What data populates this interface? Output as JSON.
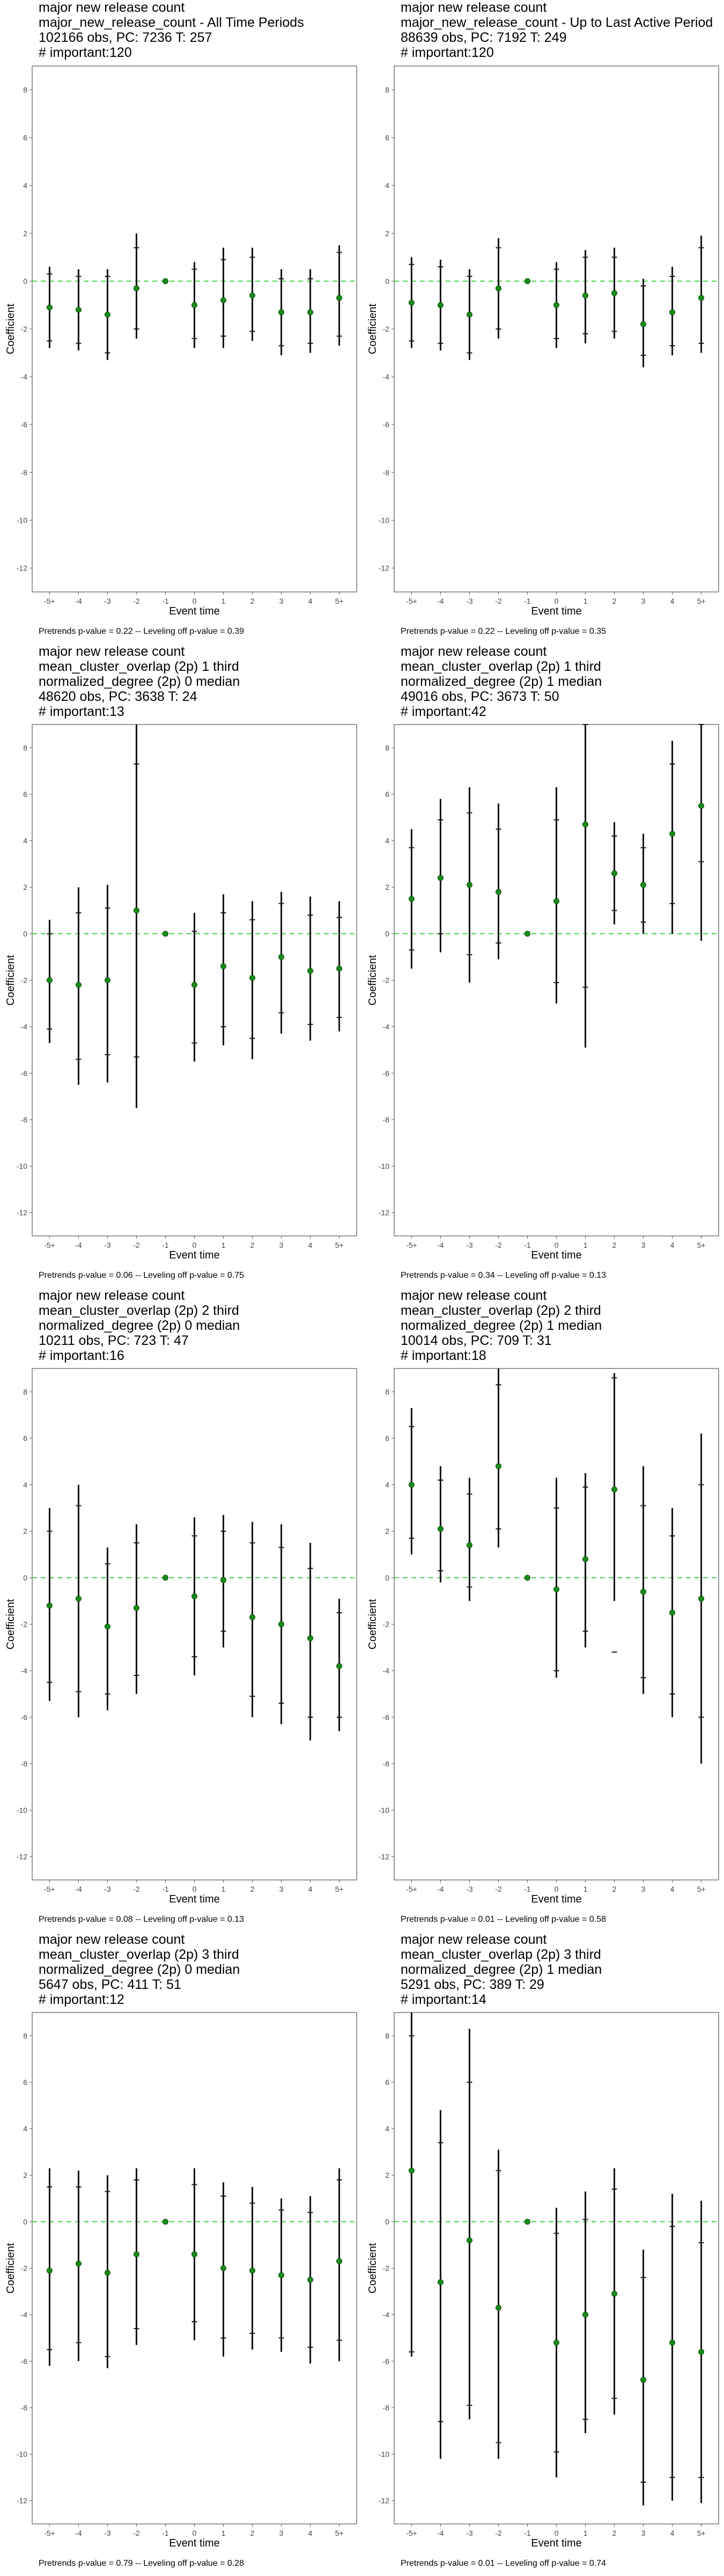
{
  "chart_data": [
    {
      "type": "scatter",
      "title_lines": [
        "major new release count",
        "major_new_release_count - All Time Periods",
        "102166 obs, PC: 7236 T: 257",
        "# important:120"
      ],
      "xlabel": "Event time",
      "ylabel": "Coefficient",
      "categories": [
        "-5+",
        "-4",
        "-3",
        "-2",
        "-1",
        "0",
        "1",
        "2",
        "3",
        "4",
        "5+"
      ],
      "ylim": [
        -13,
        9
      ],
      "yticks": [
        -12,
        -10,
        -8,
        -6,
        -4,
        -2,
        0,
        2,
        4,
        6,
        8
      ],
      "values": [
        -1.1,
        -1.2,
        -1.4,
        -0.3,
        0.0,
        -1.0,
        -0.8,
        -0.6,
        -1.3,
        -1.3,
        -0.7
      ],
      "ci95": [
        [
          -2.8,
          0.6
        ],
        [
          -2.9,
          0.5
        ],
        [
          -3.3,
          0.5
        ],
        [
          -2.4,
          2.0
        ],
        [
          0,
          0
        ],
        [
          -2.8,
          0.8
        ],
        [
          -2.8,
          1.4
        ],
        [
          -2.5,
          1.4
        ],
        [
          -3.1,
          0.5
        ],
        [
          -3.0,
          0.5
        ],
        [
          -2.7,
          1.5
        ]
      ],
      "ci90": [
        [
          -2.5,
          0.3
        ],
        [
          -2.6,
          0.2
        ],
        [
          -3.0,
          0.2
        ],
        [
          -2.0,
          1.4
        ],
        [
          0,
          0
        ],
        [
          -2.4,
          0.5
        ],
        [
          -2.3,
          0.9
        ],
        [
          -2.1,
          1.0
        ],
        [
          -2.7,
          0.1
        ],
        [
          -2.6,
          0.1
        ],
        [
          -2.3,
          1.2
        ]
      ],
      "footnote": "Pretrends p-value = 0.22 -- Leveling off p-value = 0.39"
    },
    {
      "type": "scatter",
      "title_lines": [
        "major new release count",
        "major_new_release_count - Up to Last Active Period",
        "88639 obs, PC: 7192 T: 249",
        "# important:120"
      ],
      "xlabel": "Event time",
      "ylabel": "Coefficient",
      "categories": [
        "-5+",
        "-4",
        "-3",
        "-2",
        "-1",
        "0",
        "1",
        "2",
        "3",
        "4",
        "5+"
      ],
      "ylim": [
        -13,
        9
      ],
      "yticks": [
        -12,
        -10,
        -8,
        -6,
        -4,
        -2,
        0,
        2,
        4,
        6,
        8
      ],
      "values": [
        -0.9,
        -1.0,
        -1.4,
        -0.3,
        0.0,
        -1.0,
        -0.6,
        -0.5,
        -1.8,
        -1.3,
        -0.7
      ],
      "ci95": [
        [
          -2.8,
          1.0
        ],
        [
          -2.9,
          0.9
        ],
        [
          -3.3,
          0.5
        ],
        [
          -2.4,
          1.8
        ],
        [
          0,
          0
        ],
        [
          -2.8,
          0.8
        ],
        [
          -2.6,
          1.3
        ],
        [
          -2.4,
          1.4
        ],
        [
          -3.6,
          0.1
        ],
        [
          -3.1,
          0.6
        ],
        [
          -3.0,
          1.9
        ]
      ],
      "ci90": [
        [
          -2.5,
          0.7
        ],
        [
          -2.6,
          0.6
        ],
        [
          -3.0,
          0.2
        ],
        [
          -2.0,
          1.4
        ],
        [
          0,
          0
        ],
        [
          -2.4,
          0.5
        ],
        [
          -2.2,
          1.0
        ],
        [
          -2.1,
          1.0
        ],
        [
          -3.1,
          -0.2
        ],
        [
          -2.7,
          0.2
        ],
        [
          -2.6,
          1.4
        ]
      ],
      "footnote": "Pretrends p-value = 0.22 -- Leveling off p-value = 0.35"
    },
    {
      "type": "scatter",
      "title_lines": [
        "major new release count",
        "mean_cluster_overlap (2p) 1 third",
        "normalized_degree (2p) 0 median",
        "48620 obs, PC: 3638 T: 24",
        "# important:13"
      ],
      "xlabel": "Event time",
      "ylabel": "Coefficient",
      "categories": [
        "-5+",
        "-4",
        "-3",
        "-2",
        "-1",
        "0",
        "1",
        "2",
        "3",
        "4",
        "5+"
      ],
      "ylim": [
        -13,
        9
      ],
      "yticks": [
        -12,
        -10,
        -8,
        -6,
        -4,
        -2,
        0,
        2,
        4,
        6,
        8
      ],
      "values": [
        -2.0,
        -2.2,
        -2.0,
        1.0,
        0.0,
        -2.2,
        -1.4,
        -1.9,
        -1.0,
        -1.6,
        -1.5
      ],
      "ci95": [
        [
          -4.7,
          0.6
        ],
        [
          -6.5,
          2.0
        ],
        [
          -6.4,
          2.1
        ],
        [
          -7.5,
          9.5
        ],
        [
          0,
          0
        ],
        [
          -5.5,
          0.9
        ],
        [
          -4.8,
          1.7
        ],
        [
          -5.4,
          1.4
        ],
        [
          -4.3,
          1.8
        ],
        [
          -4.6,
          1.6
        ],
        [
          -4.2,
          1.4
        ]
      ],
      "ci90": [
        [
          -4.1,
          0.0
        ],
        [
          -5.4,
          0.9
        ],
        [
          -5.2,
          1.1
        ],
        [
          -5.3,
          7.3
        ],
        [
          0,
          0
        ],
        [
          -4.7,
          0.1
        ],
        [
          -4.0,
          0.9
        ],
        [
          -4.5,
          0.6
        ],
        [
          -3.4,
          1.3
        ],
        [
          -3.9,
          0.8
        ],
        [
          -3.6,
          0.7
        ]
      ],
      "footnote": "Pretrends p-value = 0.06 -- Leveling off p-value = 0.75"
    },
    {
      "type": "scatter",
      "title_lines": [
        "major new release count",
        "mean_cluster_overlap (2p) 1 third",
        "normalized_degree (2p) 1 median",
        "49016 obs, PC: 3673 T: 50",
        "# important:42"
      ],
      "xlabel": "Event time",
      "ylabel": "Coefficient",
      "categories": [
        "-5+",
        "-4",
        "-3",
        "-2",
        "-1",
        "0",
        "1",
        "2",
        "3",
        "4",
        "5+"
      ],
      "ylim": [
        -13,
        9
      ],
      "yticks": [
        -12,
        -10,
        -8,
        -6,
        -4,
        -2,
        0,
        2,
        4,
        6,
        8
      ],
      "values": [
        1.5,
        2.4,
        2.1,
        1.8,
        0.0,
        1.4,
        4.7,
        2.6,
        2.1,
        4.3,
        5.5
      ],
      "ci95": [
        [
          -1.5,
          4.5
        ],
        [
          -0.8,
          5.8
        ],
        [
          -2.1,
          6.3
        ],
        [
          -1.1,
          5.6
        ],
        [
          0,
          0
        ],
        [
          -3.0,
          6.3
        ],
        [
          -4.9,
          10.0
        ],
        [
          0.4,
          4.8
        ],
        [
          0.0,
          4.3
        ],
        [
          0.0,
          8.3
        ],
        [
          -0.3,
          11.0
        ]
      ],
      "ci90": [
        [
          -0.7,
          3.7
        ],
        [
          0.0,
          4.9
        ],
        [
          -0.9,
          5.2
        ],
        [
          -0.4,
          4.5
        ],
        [
          0,
          0
        ],
        [
          -2.1,
          4.9
        ],
        [
          -2.3,
          9.0
        ],
        [
          1.0,
          4.2
        ],
        [
          0.5,
          3.7
        ],
        [
          1.3,
          7.3
        ],
        [
          3.1,
          9.0
        ]
      ],
      "footnote": "Pretrends p-value = 0.34 -- Leveling off p-value = 0.13"
    },
    {
      "type": "scatter",
      "title_lines": [
        "major new release count",
        "mean_cluster_overlap (2p) 2 third",
        "normalized_degree (2p) 0 median",
        "10211 obs, PC: 723 T: 47",
        "# important:16"
      ],
      "xlabel": "Event time",
      "ylabel": "Coefficient",
      "categories": [
        "-5+",
        "-4",
        "-3",
        "-2",
        "-1",
        "0",
        "1",
        "2",
        "3",
        "4",
        "5+"
      ],
      "ylim": [
        -13,
        9
      ],
      "yticks": [
        -12,
        -10,
        -8,
        -6,
        -4,
        -2,
        0,
        2,
        4,
        6,
        8
      ],
      "values": [
        -1.2,
        -0.9,
        -2.1,
        -1.3,
        0.0,
        -0.8,
        -0.1,
        -1.7,
        -2.0,
        -2.6,
        -3.8
      ],
      "ci95": [
        [
          -5.3,
          3.0
        ],
        [
          -6.0,
          4.0
        ],
        [
          -5.7,
          1.3
        ],
        [
          -5.0,
          2.3
        ],
        [
          0,
          0
        ],
        [
          -4.2,
          2.6
        ],
        [
          -3.0,
          2.7
        ],
        [
          -6.0,
          2.4
        ],
        [
          -6.3,
          2.3
        ],
        [
          -7.0,
          1.5
        ],
        [
          -6.6,
          -0.9
        ]
      ],
      "ci90": [
        [
          -4.5,
          2.0
        ],
        [
          -4.9,
          3.1
        ],
        [
          -5.0,
          0.6
        ],
        [
          -4.2,
          1.5
        ],
        [
          0,
          0
        ],
        [
          -3.4,
          1.8
        ],
        [
          -2.3,
          2.0
        ],
        [
          -5.1,
          1.5
        ],
        [
          -5.4,
          1.3
        ],
        [
          -6.0,
          0.4
        ],
        [
          -6.0,
          -1.5
        ]
      ],
      "footnote": "Pretrends p-value = 0.08 -- Leveling off p-value = 0.13"
    },
    {
      "type": "scatter",
      "title_lines": [
        "major new release count",
        "mean_cluster_overlap (2p) 2 third",
        "normalized_degree (2p) 1 median",
        "10014 obs, PC: 709 T: 31",
        "# important:18"
      ],
      "xlabel": "Event time",
      "ylabel": "Coefficient",
      "categories": [
        "-5+",
        "-4",
        "-3",
        "-2",
        "-1",
        "0",
        "1",
        "2",
        "3",
        "4",
        "5+"
      ],
      "ylim": [
        -13,
        9
      ],
      "yticks": [
        -12,
        -10,
        -8,
        -6,
        -4,
        -2,
        0,
        2,
        4,
        6,
        8
      ],
      "values": [
        4.0,
        2.1,
        1.4,
        4.8,
        0.0,
        -0.5,
        0.8,
        3.8,
        -0.6,
        -1.5,
        -0.9
      ],
      "ci95": [
        [
          1.0,
          7.3
        ],
        [
          -0.2,
          4.8
        ],
        [
          -1.0,
          4.3
        ],
        [
          1.3,
          9.5
        ],
        [
          0,
          0
        ],
        [
          -4.3,
          4.3
        ],
        [
          -3.0,
          4.5
        ],
        [
          -1.0,
          8.8
        ],
        [
          -5.0,
          4.8
        ],
        [
          -6.0,
          3.0
        ],
        [
          -8.0,
          6.2
        ]
      ],
      "ci90": [
        [
          1.7,
          6.5
        ],
        [
          0.3,
          4.2
        ],
        [
          -0.4,
          3.6
        ],
        [
          2.1,
          8.3
        ],
        [
          0,
          0
        ],
        [
          -4.0,
          3.0
        ],
        [
          -2.3,
          3.9
        ],
        [
          -3.2,
          8.6
        ],
        [
          -4.3,
          3.1
        ],
        [
          -5.0,
          1.8
        ],
        [
          -6.0,
          4.0
        ]
      ],
      "footnote": "Pretrends p-value = 0.01 -- Leveling off p-value = 0.58"
    },
    {
      "type": "scatter",
      "title_lines": [
        "major new release count",
        "mean_cluster_overlap (2p) 3 third",
        "normalized_degree (2p) 0 median",
        "5647 obs, PC: 411 T: 51",
        "# important:12"
      ],
      "xlabel": "Event time",
      "ylabel": "Coefficient",
      "categories": [
        "-5+",
        "-4",
        "-3",
        "-2",
        "-1",
        "0",
        "1",
        "2",
        "3",
        "4",
        "5+"
      ],
      "ylim": [
        -13,
        9
      ],
      "yticks": [
        -12,
        -10,
        -8,
        -6,
        -4,
        -2,
        0,
        2,
        4,
        6,
        8
      ],
      "values": [
        -2.1,
        -1.8,
        -2.2,
        -1.4,
        0.0,
        -1.4,
        -2.0,
        -2.1,
        -2.3,
        -2.5,
        -1.7
      ],
      "ci95": [
        [
          -6.2,
          2.3
        ],
        [
          -6.0,
          2.2
        ],
        [
          -6.3,
          2.0
        ],
        [
          -5.3,
          2.3
        ],
        [
          0,
          0
        ],
        [
          -5.1,
          2.3
        ],
        [
          -5.8,
          1.7
        ],
        [
          -5.5,
          1.5
        ],
        [
          -5.6,
          1.0
        ],
        [
          -6.1,
          1.1
        ],
        [
          -6.0,
          2.3
        ]
      ],
      "ci90": [
        [
          -5.5,
          1.5
        ],
        [
          -5.2,
          1.5
        ],
        [
          -5.8,
          1.3
        ],
        [
          -4.6,
          1.8
        ],
        [
          0,
          0
        ],
        [
          -4.3,
          1.6
        ],
        [
          -5.0,
          1.1
        ],
        [
          -4.8,
          0.8
        ],
        [
          -5.0,
          0.5
        ],
        [
          -5.4,
          0.4
        ],
        [
          -5.1,
          1.8
        ]
      ],
      "footnote": "Pretrends p-value = 0.79 -- Leveling off p-value = 0.28"
    },
    {
      "type": "scatter",
      "title_lines": [
        "major new release count",
        "mean_cluster_overlap (2p) 3 third",
        "normalized_degree (2p) 1 median",
        "5291 obs, PC: 389 T: 29",
        "# important:14"
      ],
      "xlabel": "Event time",
      "ylabel": "Coefficient",
      "categories": [
        "-5+",
        "-4",
        "-3",
        "-2",
        "-1",
        "0",
        "1",
        "2",
        "3",
        "4",
        "5+"
      ],
      "ylim": [
        -13,
        9
      ],
      "yticks": [
        -12,
        -10,
        -8,
        -6,
        -4,
        -2,
        0,
        2,
        4,
        6,
        8
      ],
      "values": [
        2.2,
        -2.6,
        -0.8,
        -3.7,
        0.0,
        -5.2,
        -4.0,
        -3.1,
        -6.8,
        -5.2,
        -5.6
      ],
      "ci95": [
        [
          -5.8,
          9.0
        ],
        [
          -10.2,
          4.8
        ],
        [
          -8.5,
          8.3
        ],
        [
          -10.2,
          3.1
        ],
        [
          0,
          0
        ],
        [
          -11.0,
          0.6
        ],
        [
          -9.1,
          1.3
        ],
        [
          -8.3,
          2.3
        ],
        [
          -12.2,
          -1.2
        ],
        [
          -12.0,
          1.2
        ],
        [
          -12.1,
          0.9
        ]
      ],
      "ci90": [
        [
          -5.6,
          8.0
        ],
        [
          -8.6,
          3.4
        ],
        [
          -7.9,
          6.0
        ],
        [
          -9.5,
          2.2
        ],
        [
          0,
          0
        ],
        [
          -9.9,
          -0.5
        ],
        [
          -8.5,
          0.1
        ],
        [
          -7.6,
          1.4
        ],
        [
          -11.2,
          -2.4
        ],
        [
          -11.0,
          -0.2
        ],
        [
          -11.0,
          -0.9
        ]
      ],
      "footnote": "Pretrends p-value = 0.01 -- Leveling off p-value = 0.74"
    }
  ]
}
